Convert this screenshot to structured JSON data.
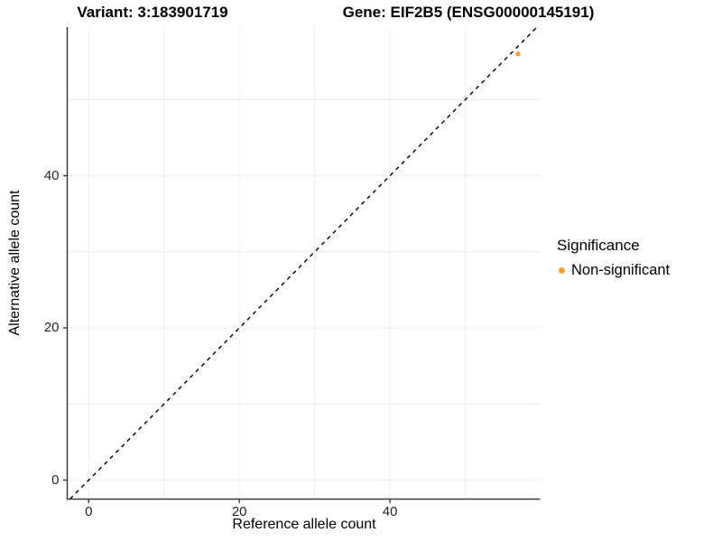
{
  "chart_data": {
    "type": "scatter",
    "titles": [
      "Variant: 3:183901719",
      "Gene: EIF2B5 (ENSG00000145191)"
    ],
    "xlabel": "Reference allele count",
    "ylabel": "Alternative allele count",
    "xlim": [
      -3,
      61
    ],
    "ylim": [
      -3,
      60
    ],
    "xticks": [
      0,
      20,
      40
    ],
    "yticks": [
      0,
      20,
      40
    ],
    "grid": {
      "x": [
        0,
        10,
        20,
        30,
        40,
        50
      ],
      "y": [
        0,
        10,
        20,
        30,
        40,
        50
      ],
      "color": "#ebebeb"
    },
    "reference_line": {
      "type": "identity",
      "slope": 1,
      "intercept": 0,
      "style": "dashed",
      "color": "#000000"
    },
    "series": [
      {
        "name": "Non-significant",
        "color": "#F9A22B",
        "points": [
          {
            "x": 57,
            "y": 56
          }
        ]
      }
    ],
    "legend": {
      "title": "Significance",
      "position": "right",
      "entries": [
        {
          "label": "Non-significant",
          "color": "#F9A22B"
        }
      ]
    },
    "axis_color": "#3c3c3c",
    "tick_label_color": "#262626"
  }
}
